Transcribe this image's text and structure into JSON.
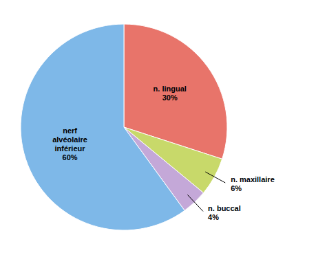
{
  "chart_data": {
    "type": "pie",
    "categories": [
      "n. lingual",
      "n. maxillaire",
      "n. buccal",
      "nerf\nalvéolaire\ninférieur"
    ],
    "values": [
      30,
      6,
      4,
      60
    ],
    "value_labels": [
      "30%",
      "6%",
      "4%",
      "60%"
    ],
    "colors": [
      "#e8746a",
      "#c8d96a",
      "#c4a8d8",
      "#7eb8e8"
    ],
    "data_labels": true
  }
}
